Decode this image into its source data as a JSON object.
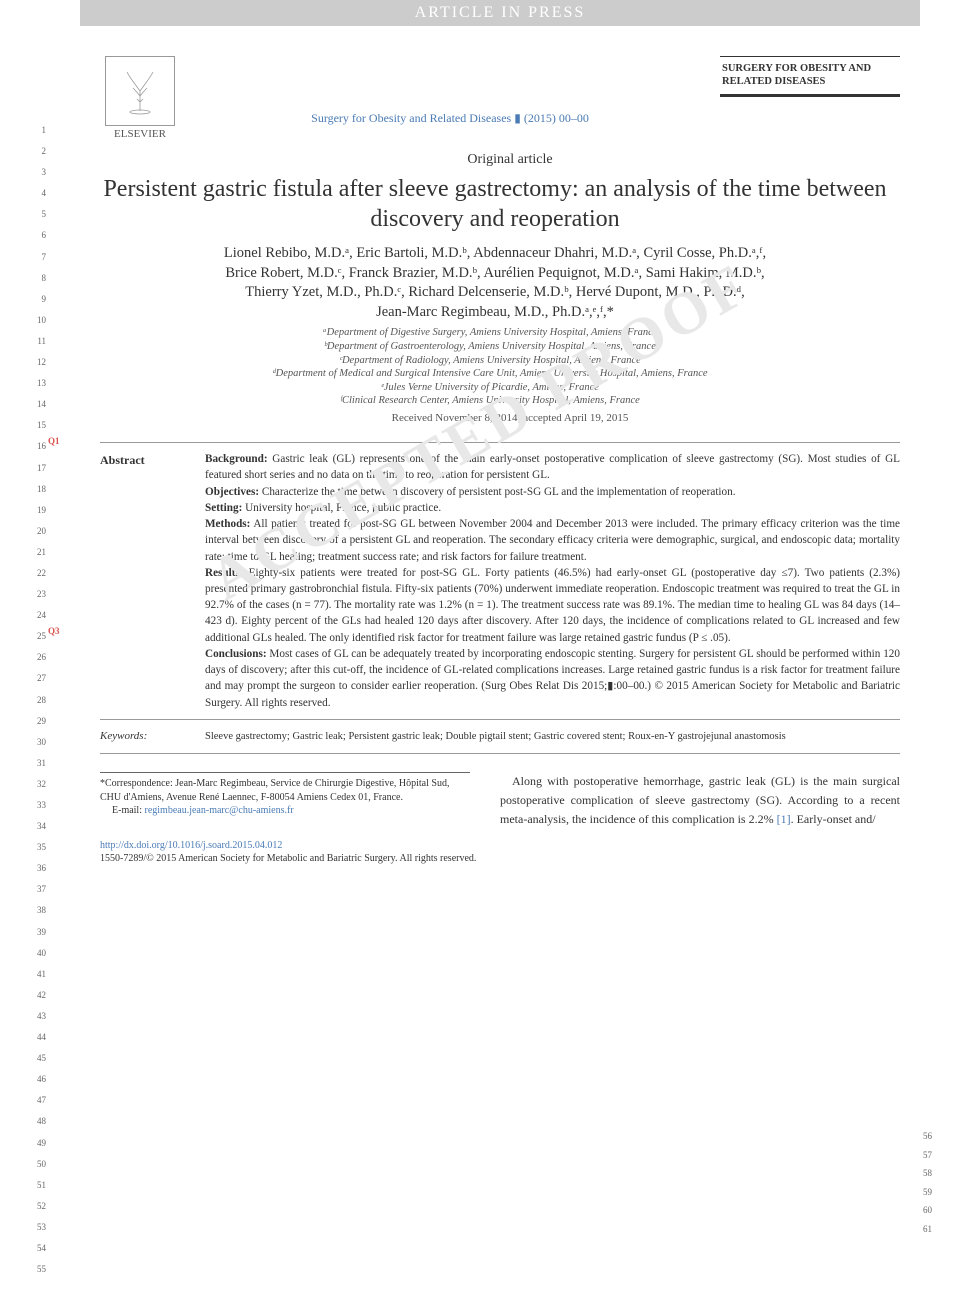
{
  "banner": "ARTICLE IN PRESS",
  "publisher": {
    "logo_label": "tree",
    "name": "ELSEVIER"
  },
  "journal_ref": "Surgery for Obesity and Related Diseases ▮ (2015) 00–00",
  "journal_brand": "SURGERY FOR OBESITY AND RELATED DISEASES",
  "article_type": "Original article",
  "title": "Persistent gastric fistula after sleeve gastrectomy: an analysis of the time between discovery and reoperation",
  "authors_line_1": "Lionel Rebibo, M.D.ᵃ, Eric Bartoli, M.D.ᵇ, Abdennaceur Dhahri, M.D.ᵃ, Cyril Cosse, Ph.D.ᵃ,ᶠ,",
  "authors_line_2": "Brice Robert, M.D.ᶜ, Franck Brazier, M.D.ᵇ, Aurélien Pequignot, M.D.ᵃ, Sami Hakim, M.D.ᵇ,",
  "authors_line_3": "Thierry Yzet, M.D., Ph.D.ᶜ, Richard Delcenserie, M.D.ᵇ, Hervé Dupont, M.D., Ph.D.ᵈ,",
  "authors_line_4": "Jean-Marc Regimbeau, M.D., Ph.D.ᵃ,ᵉ,ᶠ,*",
  "affiliations": {
    "a": "ᵃDepartment of Digestive Surgery, Amiens University Hospital, Amiens, France",
    "b": "ᵇDepartment of Gastroenterology, Amiens University Hospital, Amiens, France",
    "c": "ᶜDepartment of Radiology, Amiens University Hospital, Amiens, France",
    "d": "ᵈDepartment of Medical and Surgical Intensive Care Unit, Amiens University Hospital, Amiens, France",
    "e": "ᵉJules Verne University of Picardie, Amiens, France",
    "f": "ᶠClinical Research Center, Amiens University Hospital, Amiens, France"
  },
  "received": "Received November 8, 2014; accepted April 19, 2015",
  "abstract": {
    "label": "Abstract",
    "background_h": "Background:",
    "background": " Gastric leak (GL) represents one of the main early-onset postoperative complication of sleeve gastrectomy (SG). Most studies of GL featured short series and no data on the time to reoperation for persistent GL.",
    "objectives_h": "Objectives:",
    "objectives": " Characterize the time between discovery of persistent post-SG GL and the implementation of reoperation.",
    "setting_h": "Setting:",
    "setting": " University hospital, France, public practice.",
    "methods_h": "Methods:",
    "methods": " All patients treated for post-SG GL between November 2004 and December 2013 were included. The primary efficacy criterion was the time interval between discovery of a persistent GL and reoperation. The secondary efficacy criteria were demographic, surgical, and endoscopic data; mortality rate; time to GL healing; treatment success rate; and risk factors for failure treatment.",
    "results_h": "Results:",
    "results": " Eighty-six patients were treated for post-SG GL. Forty patients (46.5%) had early-onset GL (postoperative day ≤7). Two patients (2.3%) presented primary gastrobronchial fistula. Fifty-six patients (70%) underwent immediate reoperation. Endoscopic treatment was required to treat the GL in 92.7% of the cases (n = 77). The mortality rate was 1.2% (n = 1). The treatment success rate was 89.1%. The median time to healing GL was 84 days (14–423 d). Eighty percent of the GLs had healed 120 days after discovery. After 120 days, the incidence of complications related to GL increased and few additional GLs healed. The only identified risk factor for treatment failure was large retained gastric fundus (P ≤ .05).",
    "conclusions_h": "Conclusions:",
    "conclusions": " Most cases of GL can be adequately treated by incorporating endoscopic stenting. Surgery for persistent GL should be performed within 120 days of discovery; after this cut-off, the incidence of GL-related complications increases. Large retained gastric fundus is a risk factor for treatment failure and may prompt the surgeon to consider earlier reoperation. (Surg Obes Relat Dis 2015;▮:00–00.) © 2015 American Society for Metabolic and Bariatric Surgery. All rights reserved."
  },
  "keywords": {
    "label": "Keywords:",
    "text": "Sleeve gastrectomy; Gastric leak; Persistent gastric leak; Double pigtail stent; Gastric covered stent; Roux-en-Y gastrojejunal anastomosis"
  },
  "correspondence": {
    "text": "*Correspondence: Jean-Marc Regimbeau, Service de Chirurgie Digestive, Hôpital Sud, CHU d'Amiens, Avenue René Laennec, F-80054 Amiens Cedex 01, France.",
    "email_label": "E-mail: ",
    "email": "regimbeau.jean-marc@chu-amiens.fr"
  },
  "intro_paragraph": "Along with postoperative hemorrhage, gastric leak (GL) is the main surgical postoperative complication of sleeve gastrectomy (SG). According to a recent meta-analysis, the incidence of this complication is 2.2% [1]. Early-onset and/",
  "doi": "http://dx.doi.org/10.1016/j.soard.2015.04.012",
  "copyright": "1550-7289/© 2015 American Society for Metabolic and Bariatric Surgery. All rights reserved.",
  "watermark": "ACCEPTED PROOF",
  "markers": {
    "q1": "Q1",
    "q3": "Q3"
  },
  "line_numbers_left": [
    "1",
    "2",
    "3",
    "4",
    "5",
    "6",
    "7",
    "8",
    "9",
    "10",
    "11",
    "12",
    "13",
    "14",
    "15",
    "16",
    "17",
    "18",
    "19",
    "20",
    "21",
    "22",
    "23",
    "24",
    "25",
    "26",
    "27",
    "28",
    "29",
    "30",
    "31",
    "32",
    "33",
    "34",
    "35",
    "36",
    "37",
    "38",
    "39",
    "40",
    "41",
    "42",
    "43",
    "44",
    "45",
    "46",
    "47",
    "48",
    "49",
    "50",
    "51",
    "52",
    "53",
    "54",
    "55"
  ],
  "line_numbers_right": [
    "56",
    "57",
    "58",
    "59",
    "60",
    "61"
  ],
  "colors": {
    "banner_bg": "#cccccc",
    "link": "#4a7bb5",
    "text": "#333333",
    "watermark": "#e8e8e8",
    "marker": "#d9534f"
  },
  "fontsizes": {
    "title": 24,
    "authors": 14.5,
    "affiliations": 10.5,
    "abstract": 11.2,
    "body": 12,
    "footer": 10
  }
}
